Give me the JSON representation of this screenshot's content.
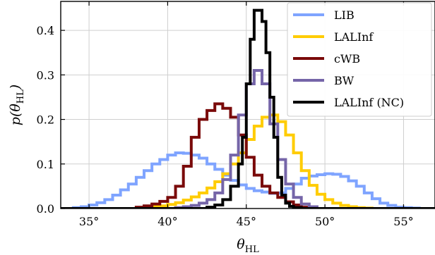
{
  "chart_data": {
    "type": "histogram",
    "xlabel": "θ_HL",
    "ylabel": "p(θ_HL)",
    "xlim": [
      33.2,
      57.0
    ],
    "ylim": [
      0.0,
      0.465
    ],
    "xticks": [
      35,
      40,
      45,
      50,
      55
    ],
    "xtick_labels": [
      "35°",
      "40°",
      "45°",
      "50°",
      "55°"
    ],
    "yticks": [
      0.0,
      0.1,
      0.2,
      0.3,
      0.4
    ],
    "ytick_labels": [
      "0.0",
      "0.1",
      "0.2",
      "0.3",
      "0.4"
    ],
    "grid": true,
    "legend_position": "top-right",
    "series": [
      {
        "name": "LIB",
        "color": "#7fa4ff",
        "bin_edges": [
          33.2,
          34,
          34.5,
          35,
          35.5,
          36,
          36.5,
          37,
          37.5,
          38,
          38.5,
          39,
          39.5,
          40,
          40.5,
          41,
          41.5,
          42,
          42.5,
          43,
          43.5,
          44,
          44.5,
          45,
          45.5,
          46,
          46.5,
          47,
          47.5,
          48,
          48.5,
          49,
          49.5,
          50,
          50.5,
          51,
          51.5,
          52,
          52.5,
          53,
          53.5,
          54,
          54.5,
          55,
          55.5,
          56,
          57
        ],
        "values": [
          0.0,
          0.002,
          0.004,
          0.008,
          0.013,
          0.02,
          0.03,
          0.042,
          0.055,
          0.07,
          0.085,
          0.1,
          0.11,
          0.12,
          0.125,
          0.124,
          0.12,
          0.113,
          0.1,
          0.088,
          0.075,
          0.063,
          0.053,
          0.045,
          0.04,
          0.037,
          0.034,
          0.035,
          0.045,
          0.055,
          0.068,
          0.073,
          0.076,
          0.078,
          0.077,
          0.072,
          0.062,
          0.05,
          0.035,
          0.022,
          0.012,
          0.007,
          0.003,
          0.002,
          0.001,
          0.0
        ]
      },
      {
        "name": "LALInf",
        "color": "#ffcc00",
        "bin_edges": [
          33.2,
          38,
          38.5,
          39,
          39.5,
          40,
          40.5,
          41,
          41.5,
          42,
          42.5,
          43,
          43.5,
          44,
          44.5,
          45,
          45.5,
          46,
          46.5,
          47,
          47.5,
          48,
          48.5,
          49,
          49.5,
          50,
          50.5,
          51,
          51.5,
          52,
          52.5,
          53,
          57
        ],
        "values": [
          0.0,
          0.001,
          0.002,
          0.004,
          0.006,
          0.009,
          0.013,
          0.019,
          0.026,
          0.035,
          0.046,
          0.06,
          0.078,
          0.1,
          0.125,
          0.155,
          0.185,
          0.205,
          0.21,
          0.195,
          0.165,
          0.125,
          0.085,
          0.052,
          0.032,
          0.02,
          0.012,
          0.007,
          0.004,
          0.002,
          0.001,
          0.0
        ]
      },
      {
        "name": "cWB",
        "color": "#7a0a0a",
        "bin_edges": [
          33.2,
          38,
          38.5,
          39,
          39.5,
          40,
          40.5,
          41,
          41.5,
          42,
          42.5,
          43,
          43.5,
          44,
          44.5,
          45,
          45.5,
          46,
          46.5,
          47,
          47.5,
          48,
          48.5,
          49,
          57
        ],
        "values": [
          0.0,
          0.003,
          0.006,
          0.01,
          0.016,
          0.025,
          0.05,
          0.095,
          0.16,
          0.2,
          0.22,
          0.235,
          0.225,
          0.205,
          0.165,
          0.115,
          0.075,
          0.05,
          0.035,
          0.025,
          0.015,
          0.008,
          0.003,
          0.0
        ]
      },
      {
        "name": "BW",
        "color": "#7565a8",
        "bin_edges": [
          33.2,
          40.5,
          41,
          41.5,
          42,
          42.5,
          43,
          43.5,
          44,
          44.5,
          45,
          45.5,
          46,
          46.5,
          47,
          47.5,
          48,
          48.5,
          49,
          49.5,
          57
        ],
        "values": [
          0.0,
          0.002,
          0.004,
          0.007,
          0.012,
          0.02,
          0.035,
          0.065,
          0.12,
          0.21,
          0.28,
          0.31,
          0.28,
          0.19,
          0.11,
          0.055,
          0.025,
          0.01,
          0.004,
          0.0
        ]
      },
      {
        "name": "LALInf (NC)",
        "color": "#000000",
        "bin_edges": [
          33.2,
          42.5,
          43,
          43.5,
          44,
          44.5,
          44.75,
          45,
          45.25,
          45.5,
          45.75,
          46,
          46.25,
          46.5,
          46.75,
          47,
          47.25,
          47.5,
          47.75,
          48,
          48.5,
          57
        ],
        "values": [
          0.0,
          0.003,
          0.008,
          0.02,
          0.05,
          0.1,
          0.16,
          0.28,
          0.38,
          0.445,
          0.445,
          0.42,
          0.35,
          0.25,
          0.16,
          0.07,
          0.03,
          0.012,
          0.005,
          0.002,
          0.0
        ]
      }
    ]
  }
}
